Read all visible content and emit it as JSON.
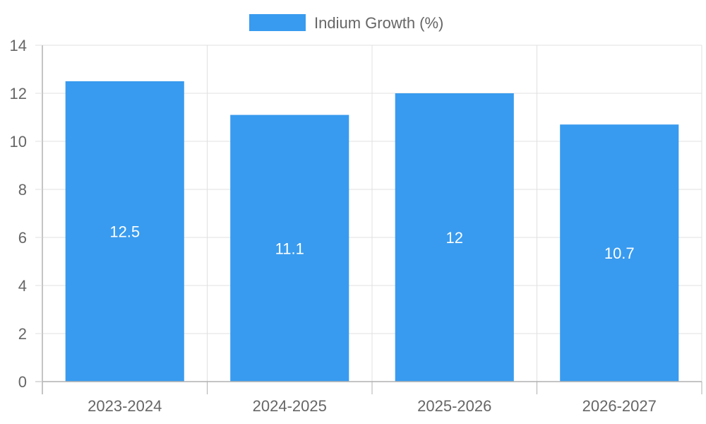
{
  "chart_data": {
    "type": "bar",
    "categories": [
      "2023-2024",
      "2024-2025",
      "2025-2026",
      "2026-2027"
    ],
    "series": [
      {
        "name": "Indium Growth (%)",
        "values": [
          12.5,
          11.1,
          12,
          10.7
        ]
      }
    ],
    "data_labels": [
      "12.5",
      "11.1",
      "12",
      "10.7"
    ],
    "ylim": [
      0,
      14
    ],
    "y_ticks": [
      0,
      2,
      4,
      6,
      8,
      10,
      12,
      14
    ],
    "y_tick_labels": [
      "0",
      "2",
      "4",
      "6",
      "8",
      "10",
      "12",
      "14"
    ],
    "legend_position": "top-center",
    "grid": true,
    "colors": {
      "bar": "#389BEF",
      "grid": "#e0e0e0",
      "axis": "#b0b0b0",
      "text": "#666666",
      "data_label": "#ffffff"
    }
  }
}
